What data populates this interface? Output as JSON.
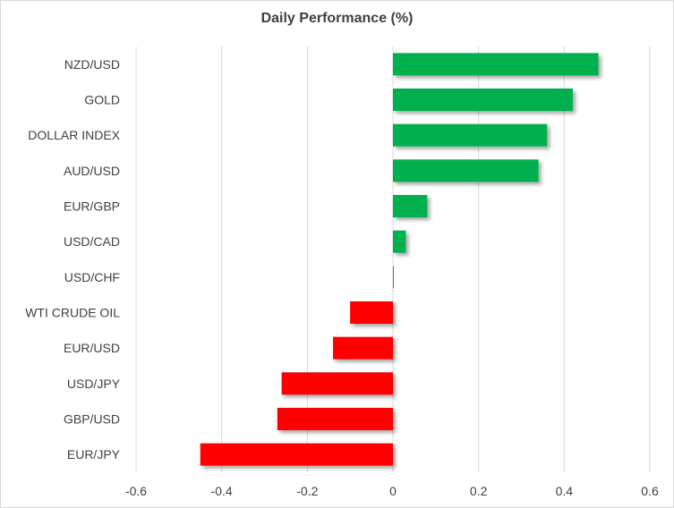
{
  "chart_data": {
    "type": "bar",
    "orientation": "horizontal",
    "title": "Daily Performance (%)",
    "xlabel": "",
    "ylabel": "",
    "categories": [
      "NZD/USD",
      "GOLD",
      "DOLLAR INDEX",
      "AUD/USD",
      "EUR/GBP",
      "USD/CAD",
      "USD/CHF",
      "WTI CRUDE OIL",
      "EUR/USD",
      "USD/JPY",
      "GBP/USD",
      "EUR/JPY"
    ],
    "values": [
      0.48,
      0.42,
      0.36,
      0.34,
      0.08,
      0.03,
      0.002,
      -0.1,
      -0.14,
      -0.26,
      -0.27,
      -0.45
    ],
    "xlim": [
      -0.6,
      0.6
    ],
    "xticks": [
      "-0.6",
      "-0.4",
      "-0.2",
      "0",
      "0.2",
      "0.4",
      "0.6"
    ],
    "grid": "vertical",
    "legend": "none",
    "colors": {
      "positive": "#00B050",
      "negative": "#FF0000",
      "grid": "#d9d9d9"
    }
  }
}
